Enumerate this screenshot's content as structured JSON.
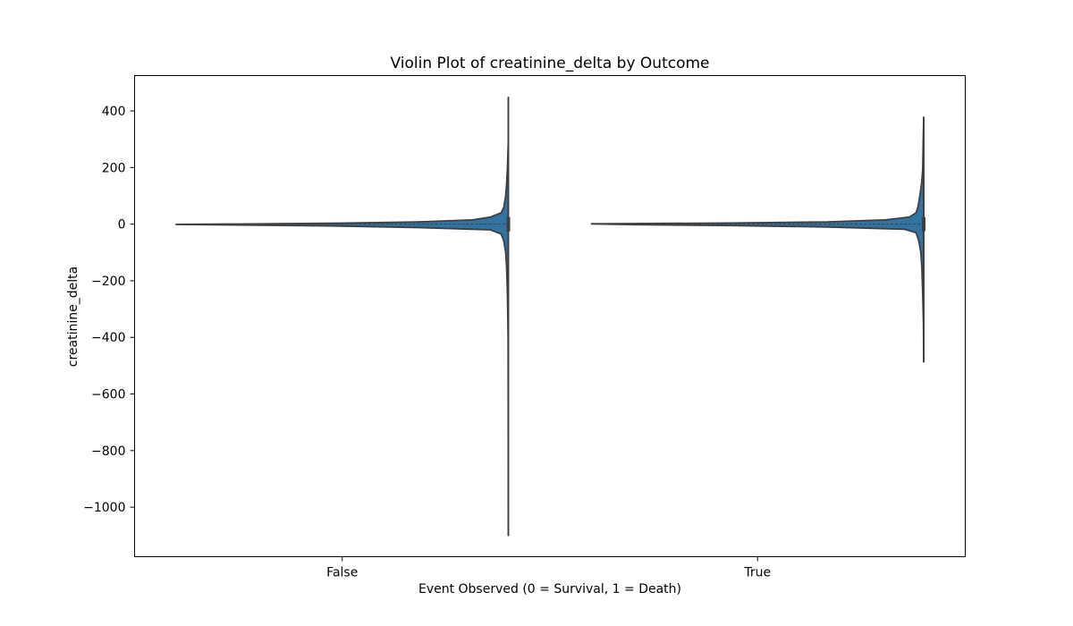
{
  "chart_data": {
    "type": "violin",
    "title": "Violin Plot of creatinine_delta by Outcome",
    "xlabel": "Event Observed (0 = Survival, 1 = Death)",
    "ylabel": "creatinine_delta",
    "categories": [
      "False",
      "True"
    ],
    "yticks": [
      400,
      200,
      0,
      -200,
      -400,
      -600,
      -800,
      -1000
    ],
    "ytick_labels": [
      "400",
      "200",
      "0",
      "−200",
      "−400",
      "−600",
      "−800",
      "−1000"
    ],
    "ylim": [
      -1175,
      525
    ],
    "grid": false,
    "color": "#3274a1",
    "edge_color": "#3f3f3f",
    "orientation": "horizontal-bulge-toward-right",
    "series": [
      {
        "category": "False",
        "min": -1100,
        "max": 448,
        "median": 0,
        "profile": [
          [
            448,
            0
          ],
          [
            300,
            0
          ],
          [
            200,
            1
          ],
          [
            140,
            2
          ],
          [
            100,
            3
          ],
          [
            60,
            5
          ],
          [
            40,
            8
          ],
          [
            25,
            20
          ],
          [
            15,
            40
          ],
          [
            8,
            100
          ],
          [
            3,
            200
          ],
          [
            0.5,
            300
          ],
          [
            -1,
            369
          ],
          [
            -3,
            300
          ],
          [
            -6,
            200
          ],
          [
            -12,
            100
          ],
          [
            -20,
            20
          ],
          [
            -35,
            8
          ],
          [
            -60,
            5
          ],
          [
            -100,
            3
          ],
          [
            -150,
            2
          ],
          [
            -250,
            1
          ],
          [
            -400,
            0.3
          ],
          [
            -1100,
            0
          ]
        ]
      },
      {
        "category": "True",
        "min": -487,
        "max": 378,
        "median": 0,
        "profile": [
          [
            378,
            0
          ],
          [
            300,
            0.5
          ],
          [
            200,
            1
          ],
          [
            150,
            2
          ],
          [
            100,
            4
          ],
          [
            60,
            6
          ],
          [
            40,
            8
          ],
          [
            25,
            15
          ],
          [
            15,
            40
          ],
          [
            8,
            100
          ],
          [
            4,
            200
          ],
          [
            1,
            345
          ],
          [
            -2,
            300
          ],
          [
            -5,
            200
          ],
          [
            -10,
            100
          ],
          [
            -18,
            20
          ],
          [
            -30,
            8
          ],
          [
            -60,
            5
          ],
          [
            -100,
            3
          ],
          [
            -150,
            2
          ],
          [
            -250,
            1
          ],
          [
            -350,
            0.3
          ],
          [
            -487,
            0
          ]
        ]
      }
    ]
  }
}
